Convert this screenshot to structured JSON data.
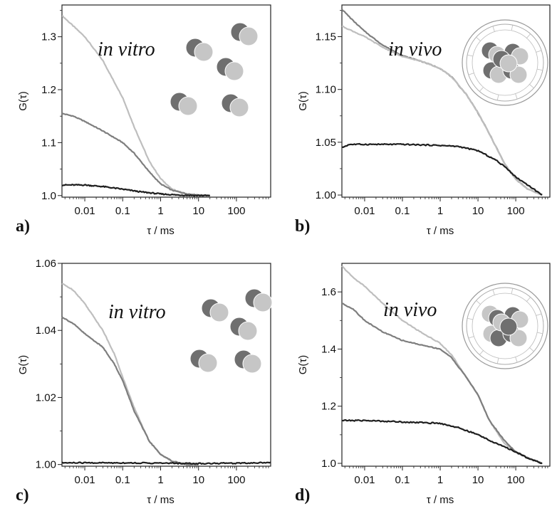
{
  "colors": {
    "dark": "#1e1e1e",
    "mid": "#7e7e7e",
    "light": "#bebebe",
    "disk_dark": "#6f6f6f",
    "disk_light": "#c6c6c6"
  },
  "chart_data": [
    {
      "type": "line",
      "panel_label": "a)",
      "title": "in vitro",
      "xlabel": "τ / ms",
      "ylabel": "G(τ)",
      "xscale": "log",
      "xlim": [
        0.0025,
        800
      ],
      "ylim": [
        0.997,
        1.36
      ],
      "xticks": [
        0.01,
        0.1,
        1,
        10,
        100
      ],
      "xticklabels": [
        "0.01",
        "0.1",
        "1",
        "10",
        "100"
      ],
      "yticks": [
        1.0,
        1.1,
        1.2,
        1.3
      ],
      "yticklabels": [
        "1.0",
        "1.1",
        "1.2",
        "1.3"
      ],
      "inset": "dimers",
      "series": [
        {
          "color": "light",
          "points": [
            [
              0.0025,
              1.34
            ],
            [
              0.005,
              1.32
            ],
            [
              0.01,
              1.3
            ],
            [
              0.03,
              1.255
            ],
            [
              0.05,
              1.225
            ],
            [
              0.1,
              1.185
            ],
            [
              0.2,
              1.13
            ],
            [
              0.5,
              1.065
            ],
            [
              1,
              1.032
            ],
            [
              2,
              1.012
            ],
            [
              5,
              1.003
            ],
            [
              10,
              1.001
            ],
            [
              20,
              1.0
            ]
          ]
        },
        {
          "color": "mid",
          "points": [
            [
              0.0025,
              1.155
            ],
            [
              0.005,
              1.15
            ],
            [
              0.01,
              1.14
            ],
            [
              0.03,
              1.122
            ],
            [
              0.1,
              1.1
            ],
            [
              0.2,
              1.08
            ],
            [
              0.5,
              1.045
            ],
            [
              1,
              1.022
            ],
            [
              2,
              1.01
            ],
            [
              5,
              1.003
            ],
            [
              10,
              1.001
            ],
            [
              20,
              1.0
            ]
          ]
        },
        {
          "color": "dark",
          "points": [
            [
              0.0025,
              1.02
            ],
            [
              0.01,
              1.02
            ],
            [
              0.03,
              1.017
            ],
            [
              0.1,
              1.012
            ],
            [
              0.3,
              1.007
            ],
            [
              1,
              1.003
            ],
            [
              3,
              1.001
            ],
            [
              10,
              1.0
            ],
            [
              20,
              1.0
            ]
          ]
        }
      ]
    },
    {
      "type": "line",
      "panel_label": "b)",
      "title": "in vivo",
      "xlabel": "τ / ms",
      "ylabel": "G(τ)",
      "xscale": "log",
      "xlim": [
        0.0025,
        800
      ],
      "ylim": [
        0.998,
        1.18
      ],
      "xticks": [
        0.01,
        0.1,
        1,
        10,
        100
      ],
      "xticklabels": [
        "0.01",
        "0.1",
        "1",
        "10",
        "100"
      ],
      "yticks": [
        1.0,
        1.05,
        1.1,
        1.15
      ],
      "yticklabels": [
        "1.00",
        "1.05",
        "1.10",
        "1.15"
      ],
      "inset": "cell",
      "series": [
        {
          "color": "mid",
          "points": [
            [
              0.0025,
              1.176
            ],
            [
              0.005,
              1.165
            ],
            [
              0.01,
              1.155
            ],
            [
              0.03,
              1.142
            ],
            [
              0.1,
              1.132
            ],
            [
              0.3,
              1.127
            ],
            [
              1,
              1.12
            ],
            [
              2,
              1.112
            ],
            [
              5,
              1.095
            ],
            [
              10,
              1.078
            ],
            [
              20,
              1.058
            ],
            [
              50,
              1.03
            ],
            [
              100,
              1.015
            ],
            [
              200,
              1.006
            ],
            [
              500,
              1.0
            ]
          ]
        },
        {
          "color": "light",
          "points": [
            [
              0.0025,
              1.16
            ],
            [
              0.005,
              1.155
            ],
            [
              0.01,
              1.15
            ],
            [
              0.03,
              1.14
            ],
            [
              0.1,
              1.131
            ],
            [
              0.3,
              1.127
            ],
            [
              1,
              1.12
            ],
            [
              2,
              1.112
            ],
            [
              5,
              1.095
            ],
            [
              10,
              1.078
            ],
            [
              20,
              1.058
            ],
            [
              50,
              1.03
            ],
            [
              100,
              1.015
            ],
            [
              200,
              1.006
            ],
            [
              500,
              1.0
            ]
          ]
        },
        {
          "color": "dark",
          "points": [
            [
              0.0025,
              1.045
            ],
            [
              0.004,
              1.048
            ],
            [
              0.01,
              1.048
            ],
            [
              0.1,
              1.048
            ],
            [
              1,
              1.047
            ],
            [
              3,
              1.046
            ],
            [
              10,
              1.042
            ],
            [
              30,
              1.033
            ],
            [
              60,
              1.025
            ],
            [
              100,
              1.017
            ],
            [
              200,
              1.01
            ],
            [
              500,
              1.0
            ]
          ]
        }
      ]
    },
    {
      "type": "line",
      "panel_label": "c)",
      "title": "in vitro",
      "xlabel": "τ / ms",
      "ylabel": "G(τ)",
      "xscale": "log",
      "xlim": [
        0.0025,
        800
      ],
      "ylim": [
        0.9995,
        1.06
      ],
      "xticks": [
        0.01,
        0.1,
        1,
        10,
        100
      ],
      "xticklabels": [
        "0.01",
        "0.1",
        "1",
        "10",
        "100"
      ],
      "yticks": [
        1.0,
        1.02,
        1.04,
        1.06
      ],
      "yticklabels": [
        "1.00",
        "1.02",
        "1.04",
        "1.06"
      ],
      "inset": "dimers",
      "series": [
        {
          "color": "light",
          "points": [
            [
              0.0025,
              1.054
            ],
            [
              0.005,
              1.052
            ],
            [
              0.01,
              1.048
            ],
            [
              0.03,
              1.04
            ],
            [
              0.06,
              1.033
            ],
            [
              0.1,
              1.026
            ],
            [
              0.2,
              1.017
            ],
            [
              0.5,
              1.007
            ],
            [
              1,
              1.003
            ],
            [
              2,
              1.001
            ],
            [
              5,
              1.0
            ],
            [
              10,
              1.0
            ]
          ]
        },
        {
          "color": "mid",
          "points": [
            [
              0.0025,
              1.044
            ],
            [
              0.005,
              1.042
            ],
            [
              0.01,
              1.039
            ],
            [
              0.03,
              1.035
            ],
            [
              0.06,
              1.03
            ],
            [
              0.1,
              1.025
            ],
            [
              0.2,
              1.016
            ],
            [
              0.5,
              1.007
            ],
            [
              1,
              1.003
            ],
            [
              2,
              1.001
            ],
            [
              5,
              1.0
            ],
            [
              10,
              1.0
            ]
          ]
        },
        {
          "color": "dark",
          "points": [
            [
              0.0025,
              1.0005
            ],
            [
              0.1,
              1.0005
            ],
            [
              1,
              1.0004
            ],
            [
              10,
              1.0003
            ],
            [
              100,
              1.0004
            ],
            [
              800,
              1.0006
            ]
          ]
        }
      ]
    },
    {
      "type": "line",
      "panel_label": "d)",
      "title": "in vivo",
      "xlabel": "τ / ms",
      "ylabel": "G(τ)",
      "xscale": "log",
      "xlim": [
        0.0025,
        800
      ],
      "ylim": [
        0.99,
        1.7
      ],
      "xticks": [
        0.01,
        0.1,
        1,
        10,
        100
      ],
      "xticklabels": [
        "0.01",
        "0.1",
        "1",
        "10",
        "100"
      ],
      "yticks": [
        1.0,
        1.2,
        1.4,
        1.6
      ],
      "yticklabels": [
        "1.0",
        "1.2",
        "1.4",
        "1.6"
      ],
      "inset": "cell",
      "series": [
        {
          "color": "light",
          "points": [
            [
              0.0025,
              1.69
            ],
            [
              0.005,
              1.65
            ],
            [
              0.01,
              1.62
            ],
            [
              0.03,
              1.56
            ],
            [
              0.1,
              1.5
            ],
            [
              0.3,
              1.46
            ],
            [
              1,
              1.42
            ],
            [
              2,
              1.38
            ],
            [
              5,
              1.3
            ],
            [
              10,
              1.24
            ],
            [
              20,
              1.15
            ],
            [
              50,
              1.07
            ],
            [
              100,
              1.04
            ],
            [
              200,
              1.02
            ],
            [
              500,
              1.0
            ]
          ]
        },
        {
          "color": "mid",
          "points": [
            [
              0.0025,
              1.56
            ],
            [
              0.005,
              1.54
            ],
            [
              0.01,
              1.5
            ],
            [
              0.03,
              1.46
            ],
            [
              0.1,
              1.43
            ],
            [
              0.3,
              1.415
            ],
            [
              1,
              1.4
            ],
            [
              2,
              1.37
            ],
            [
              5,
              1.3
            ],
            [
              10,
              1.24
            ],
            [
              20,
              1.15
            ],
            [
              50,
              1.08
            ],
            [
              100,
              1.04
            ],
            [
              200,
              1.02
            ],
            [
              500,
              1.0
            ]
          ]
        },
        {
          "color": "dark",
          "points": [
            [
              0.0025,
              1.15
            ],
            [
              0.01,
              1.15
            ],
            [
              0.1,
              1.145
            ],
            [
              1,
              1.14
            ],
            [
              3,
              1.125
            ],
            [
              10,
              1.1
            ],
            [
              30,
              1.07
            ],
            [
              100,
              1.04
            ],
            [
              200,
              1.02
            ],
            [
              500,
              1.0
            ]
          ]
        }
      ]
    }
  ]
}
